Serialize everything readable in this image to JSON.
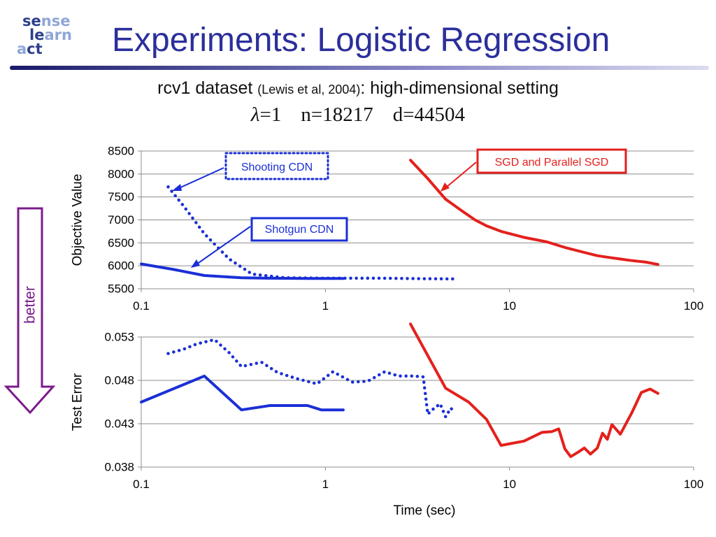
{
  "logo": {
    "line1_a": "se",
    "line1_b": "nse",
    "line2_a": "le",
    "line2_b": "arn",
    "line3_a": "a",
    "line3_b": "ct"
  },
  "title": "Experiments: Logistic Regression",
  "subtitle": {
    "dataset": "rcv1 dataset",
    "citation": "(Lewis et al, 2004)",
    "setting": ": high-dimensional setting",
    "lambda_symbol": "λ",
    "lambda_value": "=1",
    "n": "n=18217",
    "d": "d=44504"
  },
  "better_label": "better",
  "colors": {
    "blue": "#1a2fd6",
    "red": "#e4201c",
    "purple": "#7b1c8c",
    "title": "#2b2f9b"
  },
  "chart_data": [
    {
      "type": "line",
      "xscale": "log",
      "ylabel": "Objective Value",
      "xlim": [
        0.1,
        100
      ],
      "ylim": [
        5500,
        8500
      ],
      "yticks": [
        "8500",
        "8000",
        "7500",
        "7000",
        "6500",
        "6000",
        "5500"
      ],
      "ytick_values": [
        8500,
        8000,
        7500,
        7000,
        6500,
        6000,
        5500
      ],
      "xticks": [
        "0.1",
        "1",
        "10",
        "100"
      ],
      "xtick_values": [
        0.1,
        1,
        10,
        100
      ],
      "grid": true,
      "series": [
        {
          "name": "Shooting CDN",
          "style": "dotted",
          "color": "#1a2fd6",
          "x": [
            0.14,
            0.17,
            0.22,
            0.3,
            0.4,
            0.6,
            1.0,
            2.0,
            3.5,
            5.0
          ],
          "y": [
            7720,
            7300,
            6700,
            6150,
            5820,
            5740,
            5730,
            5730,
            5720,
            5715
          ]
        },
        {
          "name": "Shotgun CDN",
          "style": "solid",
          "color": "#1a2fd6",
          "x": [
            0.1,
            0.15,
            0.22,
            0.35,
            0.5,
            0.8,
            1.25
          ],
          "y": [
            6040,
            5920,
            5790,
            5740,
            5730,
            5725,
            5725
          ]
        },
        {
          "name": "SGD and Parallel SGD",
          "style": "solid",
          "color": "#e4201c",
          "x": [
            2.9,
            3.6,
            4.5,
            5.5,
            6.5,
            7.5,
            9.0,
            12.0,
            16.0,
            20.0,
            25.0,
            30.0,
            35.0,
            45.0,
            55.0,
            64.0
          ],
          "y": [
            8300,
            7900,
            7450,
            7200,
            7000,
            6870,
            6750,
            6620,
            6520,
            6400,
            6300,
            6220,
            6180,
            6120,
            6080,
            6030
          ]
        }
      ],
      "annotations": [
        {
          "text": "Shooting CDN",
          "box": "dotted",
          "color": "#1a2fd6"
        },
        {
          "text": "Shotgun CDN",
          "box": "solid",
          "color": "#1a2fd6"
        },
        {
          "text": "SGD and Parallel SGD",
          "box": "solid",
          "color": "#e4201c"
        }
      ]
    },
    {
      "type": "line",
      "xscale": "log",
      "ylabel": "Test Error",
      "xlabel": "Time (sec)",
      "xlim": [
        0.1,
        100
      ],
      "ylim": [
        0.038,
        0.053
      ],
      "yticks": [
        "0.053",
        "0.048",
        "0.043",
        "0.038"
      ],
      "ytick_values": [
        0.053,
        0.048,
        0.043,
        0.038
      ],
      "xticks": [
        "0.1",
        "1",
        "10",
        "100"
      ],
      "xtick_values": [
        0.1,
        1,
        10,
        100
      ],
      "grid": true,
      "series": [
        {
          "name": "Shooting CDN",
          "style": "dotted",
          "color": "#1a2fd6",
          "x": [
            0.14,
            0.17,
            0.2,
            0.25,
            0.3,
            0.35,
            0.45,
            0.55,
            0.7,
            0.9,
            1.1,
            1.4,
            1.7,
            2.1,
            2.5,
            3.0,
            3.4,
            3.6,
            3.8,
            4.2,
            4.5,
            4.8,
            5.0
          ],
          "y": [
            0.0511,
            0.0516,
            0.0522,
            0.0527,
            0.0512,
            0.0496,
            0.0501,
            0.0489,
            0.0482,
            0.0476,
            0.049,
            0.0478,
            0.0479,
            0.049,
            0.0485,
            0.0485,
            0.0484,
            0.0441,
            0.0446,
            0.0453,
            0.0438,
            0.0448,
            0.0444
          ]
        },
        {
          "name": "Shotgun CDN",
          "style": "solid",
          "color": "#1a2fd6",
          "x": [
            0.1,
            0.22,
            0.35,
            0.5,
            0.8,
            0.95,
            1.25
          ],
          "y": [
            0.0455,
            0.0485,
            0.0446,
            0.0451,
            0.0451,
            0.0446,
            0.0446
          ]
        },
        {
          "name": "SGD and Parallel SGD",
          "style": "solid",
          "color": "#e4201c",
          "x": [
            2.9,
            4.5,
            6.0,
            7.5,
            9.0,
            12.0,
            15.0,
            17.0,
            18.5,
            20.0,
            21.5,
            23.5,
            25.5,
            27.5,
            30.0,
            32.0,
            34.0,
            36.0,
            40.0,
            46.0,
            52.0,
            58.0,
            64.0
          ],
          "y": [
            0.0545,
            0.0471,
            0.0455,
            0.0435,
            0.0405,
            0.041,
            0.042,
            0.0421,
            0.0424,
            0.0401,
            0.0392,
            0.0397,
            0.0402,
            0.0395,
            0.0402,
            0.0419,
            0.0412,
            0.0429,
            0.0418,
            0.0442,
            0.0466,
            0.047,
            0.0465
          ]
        }
      ]
    }
  ]
}
